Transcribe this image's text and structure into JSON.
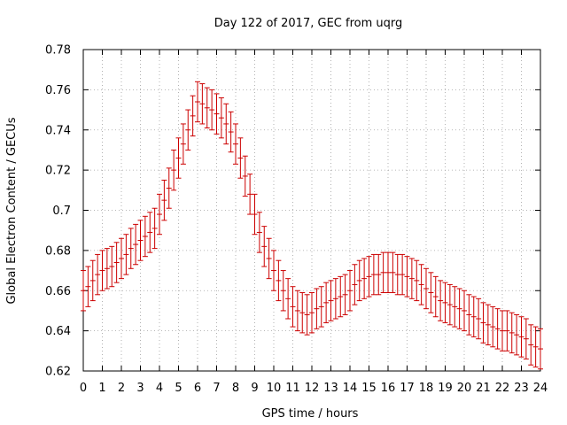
{
  "chart_data": {
    "type": "scatter",
    "title": "Day 122 of 2017, GEC from uqrg",
    "xlabel": "GPS time / hours",
    "ylabel": "Global Electron Content / GECUs",
    "xlim": [
      0,
      24
    ],
    "ylim": [
      0.62,
      0.78
    ],
    "x_ticks": [
      0,
      1,
      2,
      3,
      4,
      5,
      6,
      7,
      8,
      9,
      10,
      11,
      12,
      13,
      14,
      15,
      16,
      17,
      18,
      19,
      20,
      21,
      22,
      23,
      24
    ],
    "y_ticks": [
      0.62,
      0.64,
      0.66,
      0.68,
      0.7,
      0.72,
      0.74,
      0.76,
      0.78
    ],
    "y_tick_labels": [
      "0.62",
      "0.64",
      "0.66",
      "0.68",
      "0.7",
      "0.72",
      "0.74",
      "0.76",
      "0.78"
    ],
    "grid": true,
    "series": [
      {
        "color": "#cc0000",
        "x": [
          0,
          0.25,
          0.5,
          0.75,
          1,
          1.25,
          1.5,
          1.75,
          2,
          2.25,
          2.5,
          2.75,
          3,
          3.25,
          3.5,
          3.75,
          4,
          4.25,
          4.5,
          4.75,
          5,
          5.25,
          5.5,
          5.75,
          6,
          6.25,
          6.5,
          6.75,
          7,
          7.25,
          7.5,
          7.75,
          8,
          8.25,
          8.5,
          8.75,
          9,
          9.25,
          9.5,
          9.75,
          10,
          10.25,
          10.5,
          10.75,
          11,
          11.25,
          11.5,
          11.75,
          12,
          12.25,
          12.5,
          12.75,
          13,
          13.25,
          13.5,
          13.75,
          14,
          14.25,
          14.5,
          14.75,
          15,
          15.25,
          15.5,
          15.75,
          16,
          16.25,
          16.5,
          16.75,
          17,
          17.25,
          17.5,
          17.75,
          18,
          18.25,
          18.5,
          18.75,
          19,
          19.25,
          19.5,
          19.75,
          20,
          20.25,
          20.5,
          20.75,
          21,
          21.25,
          21.5,
          21.75,
          22,
          22.25,
          22.5,
          22.75,
          23,
          23.25,
          23.5,
          23.75,
          24
        ],
        "y": [
          0.66,
          0.662,
          0.665,
          0.668,
          0.67,
          0.671,
          0.672,
          0.674,
          0.676,
          0.678,
          0.681,
          0.683,
          0.685,
          0.687,
          0.689,
          0.691,
          0.698,
          0.705,
          0.711,
          0.72,
          0.726,
          0.733,
          0.74,
          0.747,
          0.754,
          0.753,
          0.751,
          0.75,
          0.748,
          0.746,
          0.743,
          0.739,
          0.733,
          0.726,
          0.717,
          0.708,
          0.698,
          0.689,
          0.682,
          0.676,
          0.67,
          0.665,
          0.66,
          0.656,
          0.652,
          0.65,
          0.649,
          0.648,
          0.649,
          0.651,
          0.652,
          0.654,
          0.655,
          0.656,
          0.657,
          0.658,
          0.66,
          0.663,
          0.665,
          0.666,
          0.667,
          0.668,
          0.668,
          0.669,
          0.669,
          0.669,
          0.668,
          0.668,
          0.667,
          0.666,
          0.665,
          0.663,
          0.661,
          0.659,
          0.657,
          0.655,
          0.654,
          0.653,
          0.652,
          0.651,
          0.65,
          0.648,
          0.647,
          0.646,
          0.644,
          0.643,
          0.642,
          0.641,
          0.64,
          0.64,
          0.639,
          0.638,
          0.637,
          0.636,
          0.633,
          0.632,
          0.631
        ],
        "error": 0.01
      }
    ]
  }
}
